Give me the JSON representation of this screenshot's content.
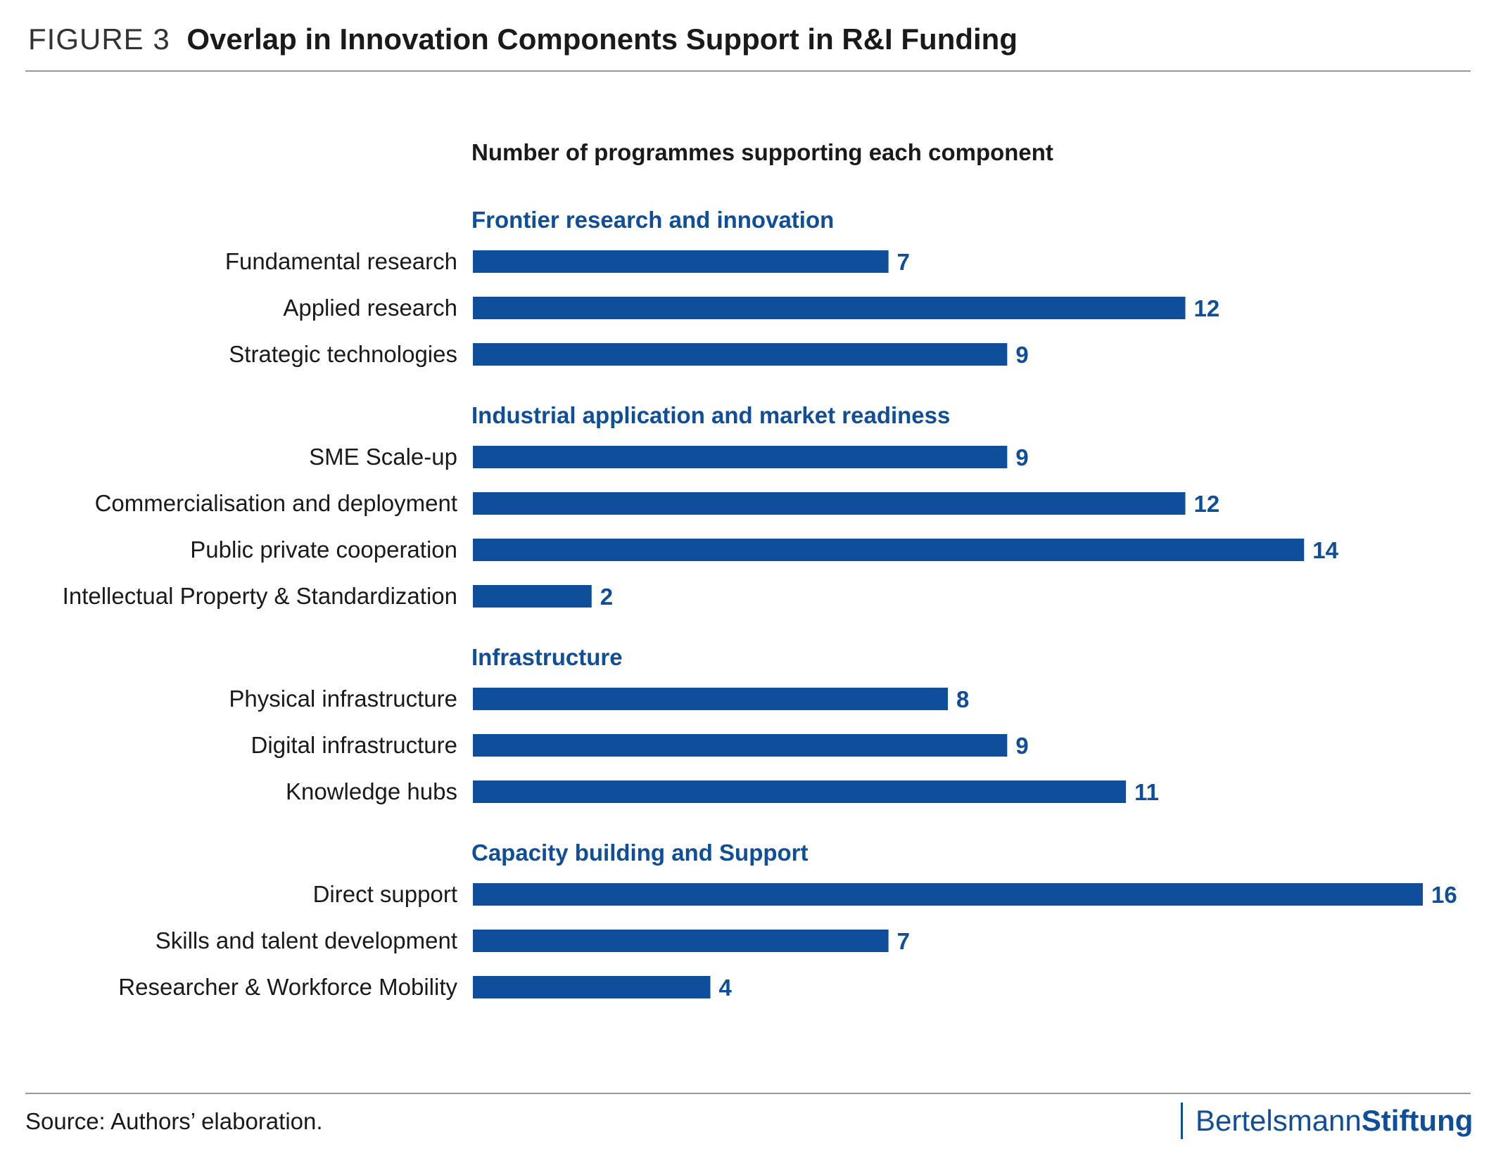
{
  "figure": {
    "number": "FIGURE 3",
    "title": "Overlap in Innovation Components Support in R&I Funding",
    "source": "Source: Authors’ elaboration.",
    "brand_part1": "Bertelsmann",
    "brand_part2": "Stiftung"
  },
  "colors": {
    "bar": "#0e4e9a",
    "category": "#0e4e9a",
    "text": "#1a1a1a"
  },
  "chart_data": {
    "type": "bar",
    "orientation": "horizontal",
    "title": "Number of programmes supporting each component",
    "xlabel": "",
    "ylabel": "",
    "xlim": [
      0,
      16
    ],
    "grid": false,
    "legend": "none",
    "groups": [
      {
        "name": "Frontier research and innovation",
        "items": [
          {
            "label": "Fundamental research",
            "value": 7
          },
          {
            "label": "Applied research",
            "value": 12
          },
          {
            "label": "Strategic technologies",
            "value": 9
          }
        ]
      },
      {
        "name": "Industrial application and market readiness",
        "items": [
          {
            "label": "SME Scale-up",
            "value": 9
          },
          {
            "label": "Commercialisation and deployment",
            "value": 12
          },
          {
            "label": "Public private cooperation",
            "value": 14
          },
          {
            "label": "Intellectual Property & Standardization",
            "value": 2
          }
        ]
      },
      {
        "name": "Infrastructure",
        "items": [
          {
            "label": "Physical infrastructure",
            "value": 8
          },
          {
            "label": "Digital infrastructure",
            "value": 9
          },
          {
            "label": "Knowledge hubs",
            "value": 11
          }
        ]
      },
      {
        "name": "Capacity building and Support",
        "items": [
          {
            "label": "Direct support",
            "value": 16
          },
          {
            "label": "Skills and talent development",
            "value": 7
          },
          {
            "label": "Researcher & Workforce Mobility",
            "value": 4
          }
        ]
      }
    ]
  }
}
